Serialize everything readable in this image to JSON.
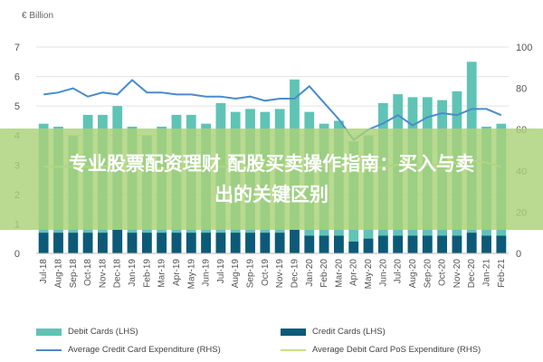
{
  "chart_data": {
    "type": "bar",
    "unit_label": "€ Billion",
    "categories": [
      "Jul-18",
      "Aug-18",
      "Sep-18",
      "Oct-18",
      "Nov-18",
      "Dec-18",
      "Jan-19",
      "Feb-19",
      "Mar-19",
      "Apr-19",
      "May-19",
      "Jun-19",
      "Jul-19",
      "Aug-19",
      "Sep-19",
      "Oct-19",
      "Nov-19",
      "Dec-19",
      "Jan-20",
      "Feb-20",
      "Mar-20",
      "Apr-20",
      "May-20",
      "Jun-20",
      "Jul-20",
      "Aug-20",
      "Sep-20",
      "Oct-20",
      "Nov-20",
      "Dec-20",
      "Jan-21",
      "Feb-21"
    ],
    "ylim_left": [
      0,
      7
    ],
    "ylim_right": [
      0,
      100
    ],
    "yticks_left": [
      "0",
      "1",
      "2",
      "3",
      "4",
      "5",
      "6",
      "7"
    ],
    "yticks_right": [
      "0",
      "20",
      "40",
      "60",
      "80",
      "100"
    ],
    "series": [
      {
        "name": "Debit Cards (LHS)",
        "kind": "bar",
        "axis": "left",
        "color": "#5fc4b5",
        "values": [
          4.4,
          4.3,
          4.0,
          4.7,
          4.7,
          5.0,
          4.3,
          4.0,
          4.3,
          4.7,
          4.7,
          4.4,
          5.1,
          4.8,
          4.9,
          4.8,
          4.9,
          5.9,
          4.8,
          4.4,
          4.5,
          3.8,
          4.0,
          5.1,
          5.4,
          5.3,
          5.3,
          5.2,
          5.5,
          6.5,
          4.3,
          4.4
        ]
      },
      {
        "name": "Credit Cards (LHS)",
        "kind": "bar",
        "axis": "left",
        "color": "#0d5a78",
        "values": [
          0.7,
          0.7,
          0.7,
          0.7,
          0.7,
          0.8,
          0.7,
          0.7,
          0.7,
          0.7,
          0.7,
          0.7,
          0.7,
          0.7,
          0.7,
          0.7,
          0.7,
          0.8,
          0.6,
          0.6,
          0.6,
          0.4,
          0.5,
          0.6,
          0.6,
          0.6,
          0.6,
          0.6,
          0.6,
          0.7,
          0.6,
          0.6
        ]
      },
      {
        "name": "Average Credit Card Expenditure (RHS)",
        "kind": "line",
        "axis": "right",
        "color": "#4a8ccc",
        "values": [
          77,
          78,
          80,
          76,
          78,
          77,
          84,
          78,
          78,
          77,
          77,
          76,
          76,
          75,
          76,
          74,
          75,
          75,
          81,
          73,
          65,
          55,
          60,
          63,
          67,
          62,
          66,
          68,
          67,
          70,
          70,
          67
        ]
      },
      {
        "name": "Average Debit Card PoS Expenditure (RHS)",
        "kind": "line",
        "axis": "right",
        "color": "#d6e8a0",
        "values": [
          42,
          42,
          42,
          42,
          42,
          43,
          43,
          41,
          41,
          42,
          42,
          42,
          42,
          42,
          42,
          42,
          42,
          43,
          42,
          42,
          42,
          40,
          41,
          42,
          43,
          43,
          43,
          43,
          44,
          45,
          44,
          42
        ]
      }
    ]
  },
  "banner": {
    "line1": "专业股票配资理财 配股买卖操作指南：买入与卖",
    "line2": "出的关键区别"
  }
}
